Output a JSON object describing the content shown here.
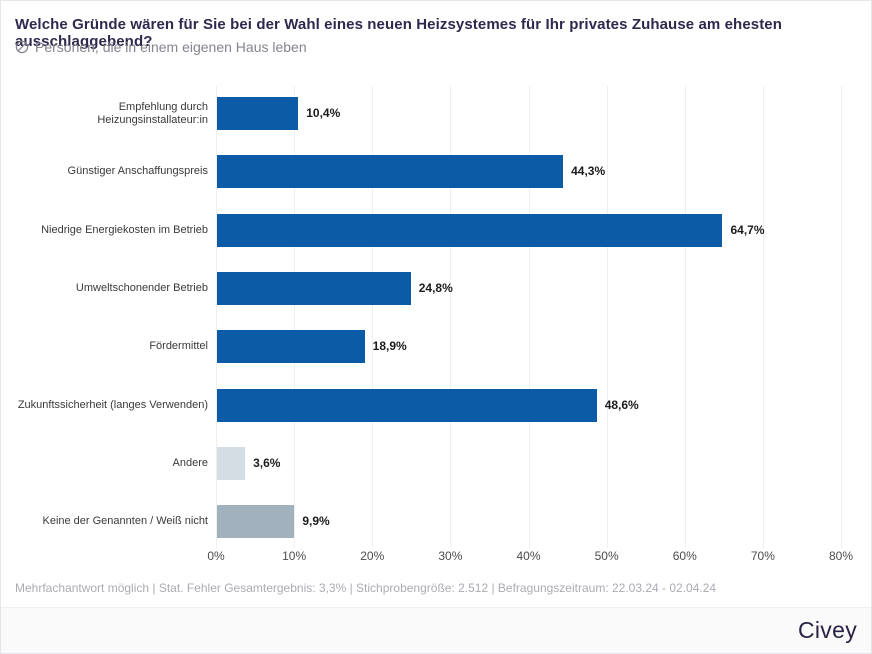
{
  "header": {
    "title": "Welche Gründe wären für Sie bei der Wahl eines neuen Heizsystemes für Ihr privates Zuhause am ehesten ausschlaggebend?",
    "subtitle": "Personen, die in einem eigenen Haus leben",
    "subtitle_icon": "slashed-circle-icon"
  },
  "chart_data": {
    "type": "bar",
    "orientation": "horizontal",
    "title": "Welche Gründe wären für Sie bei der Wahl eines neuen Heizsystemes für Ihr privates Zuhause am ehesten ausschlaggebend?",
    "categories": [
      "Empfehlung durch Heizungsinstallateur:in",
      "Günstiger Anschaffungspreis",
      "Niedrige Energiekosten im Betrieb",
      "Umweltschonender Betrieb",
      "Fördermittel",
      "Zukunftssicherheit (langes Verwenden)",
      "Andere",
      "Keine der Genannten / Weiß nicht"
    ],
    "values": [
      10.4,
      44.3,
      64.7,
      24.8,
      18.9,
      48.6,
      3.6,
      9.9
    ],
    "value_labels": [
      "10,4%",
      "44,3%",
      "64,7%",
      "24,8%",
      "18,9%",
      "48,6%",
      "3,6%",
      "9,9%"
    ],
    "bar_colors": [
      "#0b5ba6",
      "#0b5ba6",
      "#0b5ba6",
      "#0b5ba6",
      "#0b5ba6",
      "#0b5ba6",
      "#d5dde4",
      "#a1b2be"
    ],
    "xlim": [
      0,
      80
    ],
    "x_ticks": [
      "0%",
      "10%",
      "20%",
      "30%",
      "40%",
      "50%",
      "60%",
      "70%",
      "80%"
    ],
    "grid": true,
    "legend": null
  },
  "footer": {
    "note": "Mehrfachantwort möglich | Stat. Fehler Gesamtergebnis: 3,3% | Stichprobengröße: 2.512 | Befragungszeitraum: 22.03.24 - 02.04.24",
    "brand": "Civey"
  },
  "colors": {
    "accent_blue": "#0b5ba6",
    "bar_light_gray": "#d5dde4",
    "bar_medium_gray": "#a1b2be",
    "title_navy": "#2e294e",
    "gridline": "#efefef",
    "subtitle_gray": "#84848e",
    "footnote_gray": "#ababb3"
  }
}
